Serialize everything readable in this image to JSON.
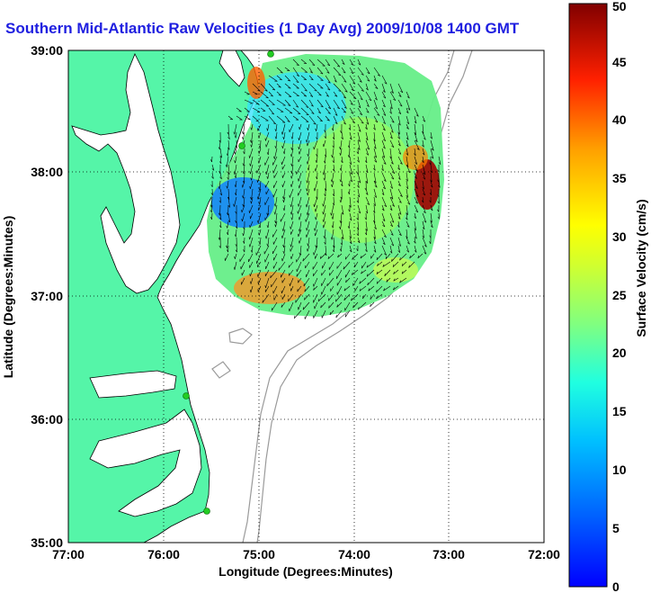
{
  "title": "Southern Mid-Atlantic Raw Velocities (1 Day Avg) 2009/10/08 1400 GMT",
  "map": {
    "xlabel": "Longitude (Degrees:Minutes)",
    "ylabel": "Latitude (Degrees:Minutes)",
    "x_ticks": [
      "77:00",
      "76:00",
      "75:00",
      "74:00",
      "73:00",
      "72:00"
    ],
    "y_ticks": [
      "39:00",
      "38:00",
      "37:00",
      "36:00",
      "35:00"
    ],
    "lon_range": [
      -77,
      -72
    ],
    "lat_range": [
      35,
      39
    ],
    "grid": true,
    "colors": {
      "land": "#55f5a8",
      "coast_line": "#000000",
      "bathymetry": "#9a9a9a",
      "vector": "#000000",
      "station_marker": "#22cc22",
      "title": "#1f1fe0"
    },
    "stations_latlon": [
      [
        38.97,
        -74.9
      ],
      [
        38.2,
        -75.15
      ],
      [
        36.18,
        -75.75
      ],
      [
        35.25,
        -75.52
      ]
    ]
  },
  "colorbar": {
    "label": "Surface Velocity (cm/s)",
    "ticks": [
      "0",
      "5",
      "10",
      "15",
      "20",
      "25",
      "30",
      "35",
      "40",
      "45",
      "50"
    ],
    "range": [
      0,
      50
    ],
    "colormap": "jet"
  }
}
